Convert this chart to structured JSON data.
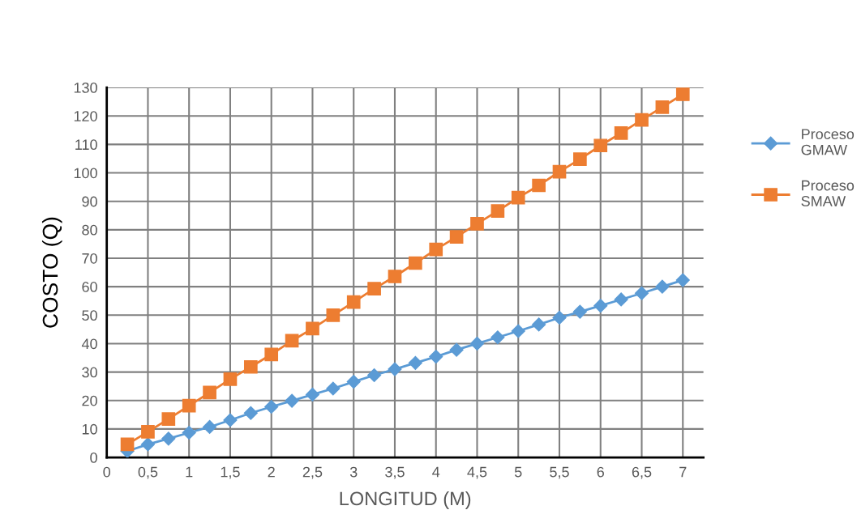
{
  "chart_data": {
    "type": "line",
    "xlabel": "LONGITUD (M)",
    "ylabel": "COSTO (Q)",
    "x": [
      0.25,
      0.5,
      0.75,
      1,
      1.25,
      1.5,
      1.75,
      2,
      2.25,
      2.5,
      2.75,
      3,
      3.25,
      3.5,
      3.75,
      4,
      4.25,
      4.5,
      4.75,
      5,
      5.25,
      5.5,
      5.75,
      6,
      6.25,
      6.5,
      6.75,
      7
    ],
    "series": [
      {
        "name": "Proceso\nGMAW",
        "color": "#5b9bd5",
        "marker": "diamond",
        "values": [
          2.2,
          4.6,
          6.6,
          8.7,
          10.7,
          13.1,
          15.6,
          17.8,
          19.9,
          22.1,
          24.2,
          26.6,
          28.9,
          31.0,
          33.2,
          35.4,
          37.8,
          40.0,
          42.2,
          44.4,
          46.7,
          49.1,
          51.2,
          53.3,
          55.5,
          57.7,
          60.0,
          62.3
        ]
      },
      {
        "name": "Proceso\nSMAW",
        "color": "#ed7d31",
        "marker": "square",
        "values": [
          4.6,
          9.0,
          13.5,
          18.2,
          22.8,
          27.5,
          31.8,
          36.2,
          41.0,
          45.3,
          50.0,
          54.6,
          59.3,
          63.6,
          68.3,
          73.1,
          77.5,
          82.1,
          86.6,
          91.3,
          95.6,
          100.4,
          104.8,
          109.6,
          114.0,
          118.6,
          123.1,
          127.6
        ]
      }
    ],
    "xlim": [
      0,
      7.25
    ],
    "xticks": [
      0,
      {
        "value": 0.5,
        "label": "0,5"
      },
      1,
      {
        "value": 1.5,
        "label": "1,5"
      },
      2,
      {
        "value": 2.5,
        "label": "2,5"
      },
      3,
      {
        "value": 3.5,
        "label": "3,5"
      },
      4,
      {
        "value": 4.5,
        "label": "4,5"
      },
      5,
      {
        "value": 5.5,
        "label": "5,5"
      },
      6,
      {
        "value": 6.5,
        "label": "6,5"
      },
      7
    ],
    "ylim": [
      0,
      130
    ],
    "yticks": [
      0,
      10,
      20,
      30,
      40,
      50,
      60,
      70,
      80,
      90,
      100,
      110,
      120,
      130
    ],
    "grid": true,
    "legend": "right",
    "line_style": "solid"
  }
}
